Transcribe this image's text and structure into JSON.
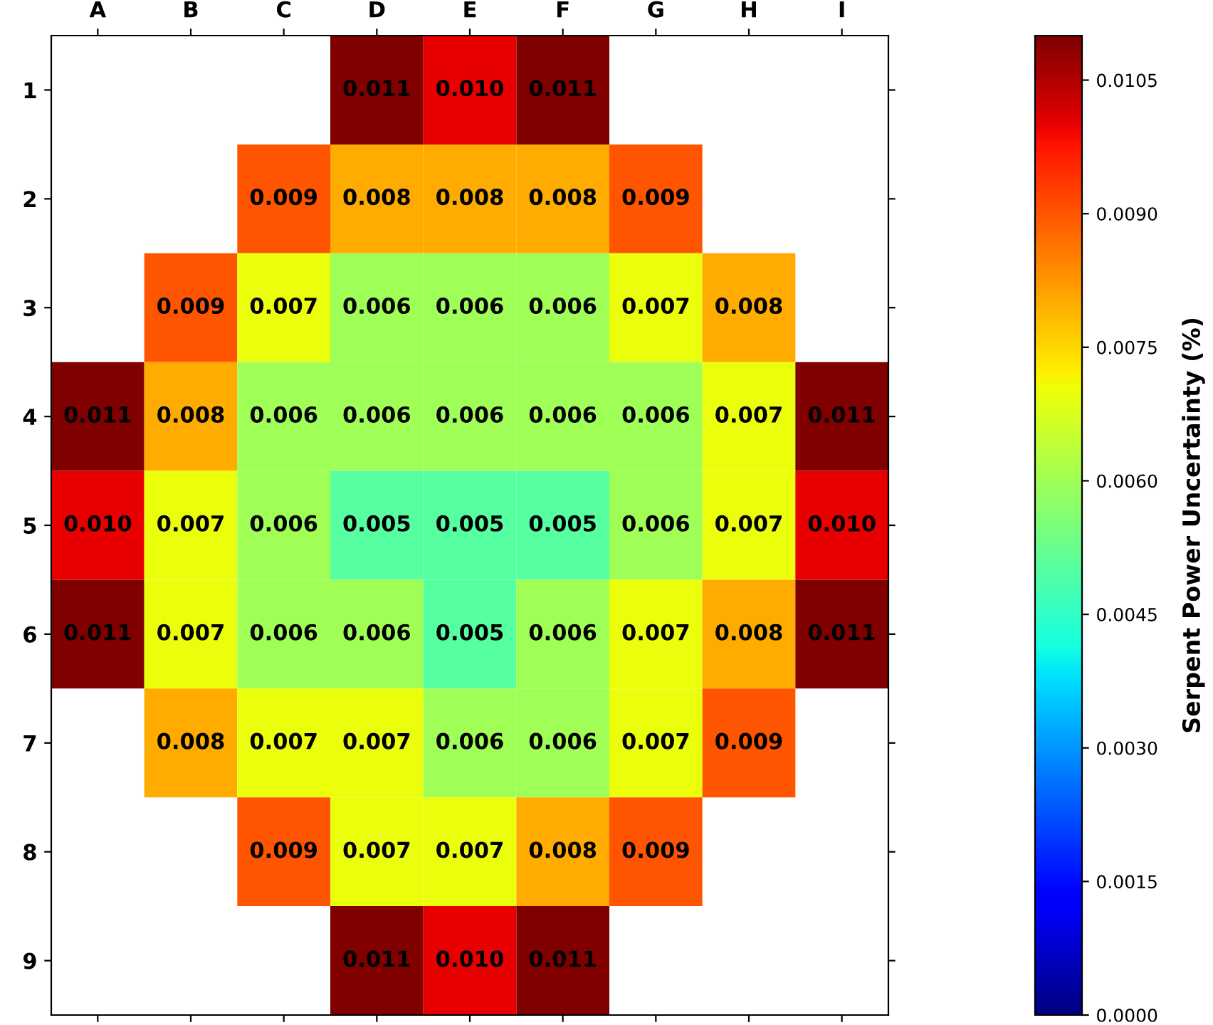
{
  "chart_data": {
    "type": "heatmap",
    "clabel": "Serpent Power Uncertainty (%)",
    "categories": [
      "A",
      "B",
      "C",
      "D",
      "E",
      "F",
      "G",
      "H",
      "I"
    ],
    "y_categories": [
      "1",
      "2",
      "3",
      "4",
      "5",
      "6",
      "7",
      "8",
      "9"
    ],
    "cells": [
      [
        null,
        null,
        null,
        0.011,
        0.01,
        0.011,
        null,
        null,
        null
      ],
      [
        null,
        null,
        0.009,
        0.008,
        0.008,
        0.008,
        0.009,
        null,
        null
      ],
      [
        null,
        0.009,
        0.007,
        0.006,
        0.006,
        0.006,
        0.007,
        0.008,
        null
      ],
      [
        0.011,
        0.008,
        0.006,
        0.006,
        0.006,
        0.006,
        0.006,
        0.007,
        0.011
      ],
      [
        0.01,
        0.007,
        0.006,
        0.005,
        0.005,
        0.005,
        0.006,
        0.007,
        0.01
      ],
      [
        0.011,
        0.007,
        0.006,
        0.006,
        0.005,
        0.006,
        0.007,
        0.008,
        0.011
      ],
      [
        null,
        0.008,
        0.007,
        0.007,
        0.006,
        0.006,
        0.007,
        0.009,
        null
      ],
      [
        null,
        null,
        0.009,
        0.007,
        0.007,
        0.008,
        0.009,
        null,
        null
      ],
      [
        null,
        null,
        null,
        0.011,
        0.01,
        0.011,
        null,
        null,
        null
      ]
    ],
    "cell_labels": [
      [
        null,
        null,
        null,
        "0.011",
        "0.010",
        "0.011",
        null,
        null,
        null
      ],
      [
        null,
        null,
        "0.009",
        "0.008",
        "0.008",
        "0.008",
        "0.009",
        null,
        null
      ],
      [
        null,
        "0.009",
        "0.007",
        "0.006",
        "0.006",
        "0.006",
        "0.007",
        "0.008",
        null
      ],
      [
        "0.011",
        "0.008",
        "0.006",
        "0.006",
        "0.006",
        "0.006",
        "0.006",
        "0.007",
        "0.011"
      ],
      [
        "0.010",
        "0.007",
        "0.006",
        "0.005",
        "0.005",
        "0.005",
        "0.006",
        "0.007",
        "0.010"
      ],
      [
        "0.011",
        "0.007",
        "0.006",
        "0.006",
        "0.005",
        "0.006",
        "0.007",
        "0.008",
        "0.011"
      ],
      [
        null,
        "0.008",
        "0.007",
        "0.007",
        "0.006",
        "0.006",
        "0.007",
        "0.009",
        null
      ],
      [
        null,
        null,
        "0.009",
        "0.007",
        "0.007",
        "0.008",
        "0.009",
        null,
        null
      ],
      [
        null,
        null,
        null,
        "0.011",
        "0.010",
        "0.011",
        null,
        null,
        null
      ]
    ],
    "clim": [
      0,
      0.011
    ],
    "cticks": [
      {
        "value": 0,
        "label": "0.0000"
      },
      {
        "value": 0.0015,
        "label": "0.0015"
      },
      {
        "value": 0.003,
        "label": "0.0030"
      },
      {
        "value": 0.0045,
        "label": "0.0045"
      },
      {
        "value": 0.006,
        "label": "0.0060"
      },
      {
        "value": 0.0075,
        "label": "0.0075"
      },
      {
        "value": 0.009,
        "label": "0.0090"
      },
      {
        "value": 0.0105,
        "label": "0.0105"
      }
    ]
  }
}
